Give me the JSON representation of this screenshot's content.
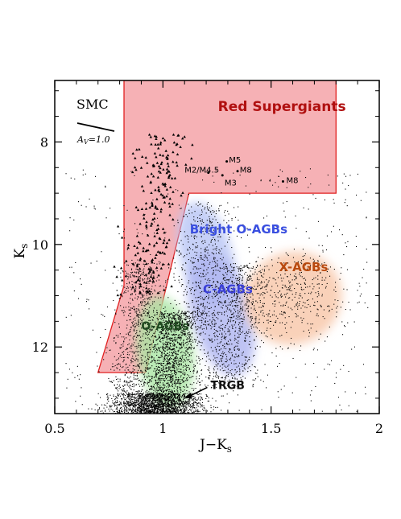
{
  "chart_data": {
    "type": "scatter",
    "title": "",
    "xlabel": "J−K",
    "xlabel_sub": "s",
    "ylabel": "K",
    "ylabel_sub": "s",
    "xlim": [
      0.5,
      2.0
    ],
    "ylim": [
      13.3,
      6.8
    ],
    "y_inverted": true,
    "grid": false,
    "x_ticks": [
      {
        "value": 0.5,
        "label": "0.5"
      },
      {
        "value": 1.0,
        "label": "1"
      },
      {
        "value": 1.5,
        "label": "1.5"
      },
      {
        "value": 2.0,
        "label": "2"
      }
    ],
    "y_ticks": [
      {
        "value": 8,
        "label": "8"
      },
      {
        "value": 10,
        "label": "10"
      },
      {
        "value": 12,
        "label": "12"
      }
    ],
    "galaxy_label": "SMC",
    "reddening_label": "A",
    "reddening_label_sub": "V",
    "reddening_label_rest": "=1.0",
    "regions": [
      {
        "name": "Red Supergiants",
        "color": "#f5a3a8",
        "label_color": "#b01010",
        "polygon": [
          [
            0.82,
            6.8
          ],
          [
            1.8,
            6.8
          ],
          [
            1.8,
            9.0
          ],
          [
            1.12,
            9.0
          ],
          [
            0.92,
            12.5
          ],
          [
            0.7,
            12.5
          ],
          [
            0.82,
            10.8
          ]
        ]
      },
      {
        "name": "Bright O-AGBs",
        "color": "#b8c4f5",
        "label_color": "#3a4fe0",
        "center": [
          1.2,
          10.2
        ],
        "rx": 0.12,
        "ry": 1.05,
        "rot": -15
      },
      {
        "name": "C-AGBs",
        "color": "#aeb4f0",
        "label_color": "#3a3fd8",
        "center": [
          1.27,
          11.35
        ],
        "rx": 0.14,
        "ry": 1.25,
        "rot": -15
      },
      {
        "name": "O-AGBs",
        "color": "#a9e5a3",
        "label_color": "#1f4a1f",
        "center": [
          1.01,
          12.1
        ],
        "rx": 0.13,
        "ry": 1.1,
        "rot": -8
      },
      {
        "name": "X-AGBs",
        "color": "#f8c6a8",
        "label_color": "#b8490e",
        "center": [
          1.6,
          11.05
        ],
        "rx": 0.23,
        "ry": 0.9,
        "rot": -25
      }
    ],
    "annotations": [
      {
        "text": "M5",
        "x": 1.305,
        "y": 8.4,
        "marker": [
          1.295,
          8.38
        ]
      },
      {
        "text": "M2/M4.5",
        "x": 1.1,
        "y": 8.6,
        "marker": [
          1.21,
          8.6
        ]
      },
      {
        "text": "M8",
        "x": 1.355,
        "y": 8.6,
        "marker": [
          1.345,
          8.57
        ]
      },
      {
        "text": "M3",
        "x": 1.285,
        "y": 8.85,
        "marker": [
          1.275,
          8.65
        ]
      },
      {
        "text": "M8",
        "x": 1.57,
        "y": 8.8,
        "marker": [
          1.555,
          8.77
        ]
      },
      {
        "text": "TRGB",
        "x": 1.22,
        "y": 12.82,
        "arrow_to": [
          1.1,
          13.0
        ]
      }
    ]
  }
}
